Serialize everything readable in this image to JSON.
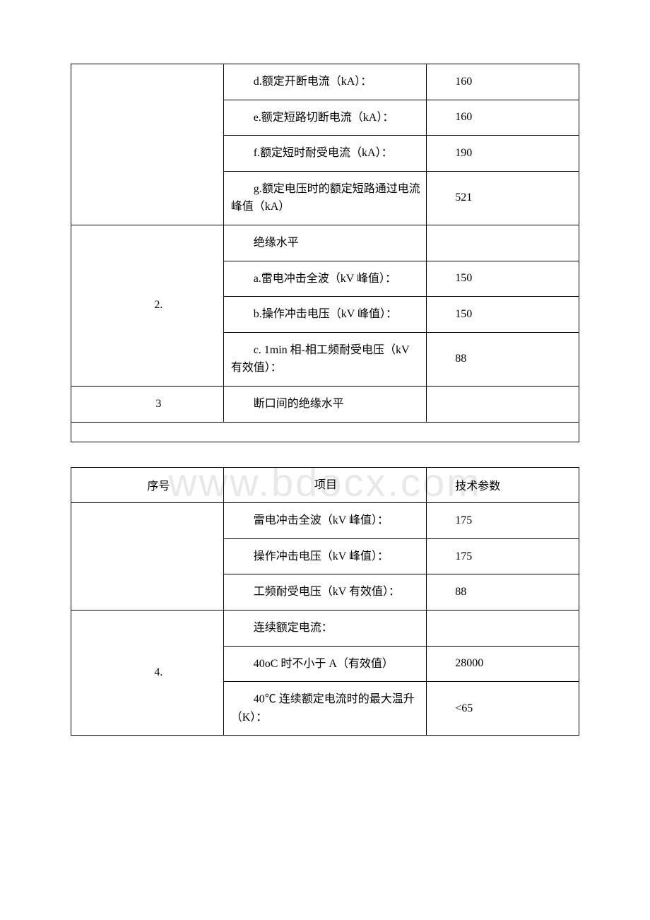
{
  "watermark": "www.bdocx.com",
  "table1": {
    "rows": [
      {
        "col1_rowspan": 4,
        "col1": "",
        "col2": "d.额定开断电流（kA）：",
        "col3": "160"
      },
      {
        "col2": "e.额定短路切断电流（kA）：",
        "col3": "160"
      },
      {
        "col2": "f.额定短时耐受电流（kA）：",
        "col3": "190"
      },
      {
        "col2": "g.额定电压时的额定短路通过电流峰值（kA）",
        "col3": "521"
      },
      {
        "col1_rowspan": 4,
        "col1": "2.",
        "col2": "绝缘水平",
        "col3": ""
      },
      {
        "col2": "a.雷电冲击全波（kV 峰值）：",
        "col3": "150"
      },
      {
        "col2": "b.操作冲击电压（kV 峰值）：",
        "col3": "150"
      },
      {
        "col2": "c. 1min 相-相工频耐受电压（kV 有效值）：",
        "col3": "88"
      },
      {
        "col1_rowspan": 1,
        "col1": "3",
        "col2": "断口间的绝缘水平",
        "col3": ""
      }
    ]
  },
  "table2": {
    "header": {
      "col1": "序号",
      "col2": "项目",
      "col3": "技术参数"
    },
    "rows": [
      {
        "col1_rowspan": 3,
        "col1": "",
        "col2": "雷电冲击全波（kV 峰值）：",
        "col3": "175"
      },
      {
        "col2": "操作冲击电压（kV 峰值）：",
        "col3": "175"
      },
      {
        "col2": "工频耐受电压（kV 有效值）：",
        "col3": "88"
      },
      {
        "col1_rowspan": 3,
        "col1": "4.",
        "col2": "连续额定电流：",
        "col3": ""
      },
      {
        "col2": "40oC 时不小于 A（有效值）",
        "col3": "28000"
      },
      {
        "col2": "40℃ 连续额定电流时的最大温升（K）：",
        "col3": "<65"
      }
    ]
  }
}
